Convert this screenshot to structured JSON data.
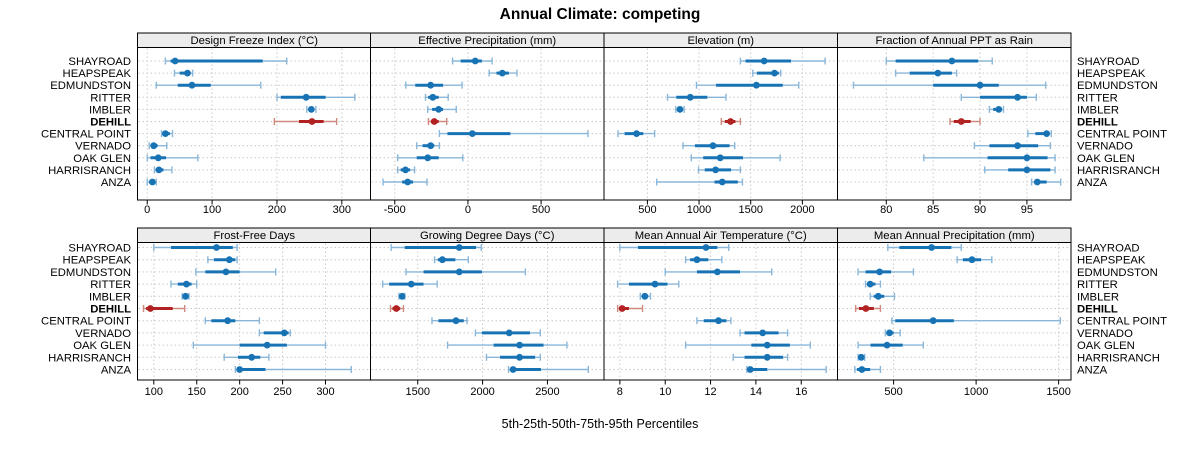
{
  "title": "Annual Climate: competing",
  "xlabel": "5th-25th-50th-75th-95th Percentiles",
  "highlight_location": "DEHILL",
  "locations": [
    "SHAYROAD",
    "HEAPSPEAK",
    "EDMUNDSTON",
    "RITTER",
    "IMBLER",
    "DEHILL",
    "CENTRAL POINT",
    "VERNADO",
    "OAK GLEN",
    "HARRISRANCH",
    "ANZA"
  ],
  "colors": {
    "blue": "#1873b5",
    "blue_light": "#8ab7d9",
    "red": "#b22222",
    "red_light": "#d0897f",
    "strip_bg": "#ececec",
    "grid": "#c9c9c9",
    "border": "#000000",
    "text": "#000000"
  },
  "chart_data": {
    "type": "segplot-trellis",
    "note": "Each row shows 5th-25th-50th-75th-95th percentiles; thin line 5th-95th with end caps, thick line 25th-75th, dot at median",
    "percentile_labels": [
      "5th",
      "25th",
      "50th",
      "75th",
      "95th"
    ],
    "panels": [
      {
        "title": "Design Freeze Index (°C)",
        "grid_row": 0,
        "grid_col": 0,
        "xlim": [
          -15,
          345
        ],
        "ticks": [
          0,
          100,
          200,
          300
        ],
        "values": {
          "SHAYROAD": [
            28,
            36,
            43,
            178,
            215
          ],
          "HEAPSPEAK": [
            42,
            50,
            62,
            67,
            70
          ],
          "EDMUNDSTON": [
            14,
            47,
            69,
            98,
            175
          ],
          "RITTER": [
            200,
            206,
            245,
            275,
            320
          ],
          "IMBLER": [
            246,
            249,
            253,
            257,
            260
          ],
          "DEHILL": [
            196,
            234,
            254,
            272,
            292
          ],
          "CENTRAL POINT": [
            22,
            24,
            28,
            35,
            39
          ],
          "VERNADO": [
            3,
            6,
            10,
            16,
            30
          ],
          "OAK GLEN": [
            0,
            5,
            17,
            29,
            78
          ],
          "HARRISRANCH": [
            11,
            13,
            18,
            25,
            38
          ],
          "ANZA": [
            0,
            3,
            8,
            12,
            14
          ]
        }
      },
      {
        "title": "Effective Precipitation (mm)",
        "grid_row": 0,
        "grid_col": 1,
        "xlim": [
          -666,
          930
        ],
        "ticks": [
          -500,
          0,
          500
        ],
        "values": {
          "SHAYROAD": [
            -105,
            -50,
            50,
            95,
            165
          ],
          "HEAPSPEAK": [
            145,
            195,
            235,
            280,
            335
          ],
          "EDMUNDSTON": [
            -425,
            -360,
            -255,
            -170,
            -40
          ],
          "RITTER": [
            -290,
            -272,
            -240,
            -200,
            -135
          ],
          "IMBLER": [
            -275,
            -245,
            -200,
            -170,
            -80
          ],
          "DEHILL": [
            -270,
            -253,
            -230,
            -200,
            -145
          ],
          "CENTRAL POINT": [
            -195,
            -140,
            30,
            290,
            820
          ],
          "VERNADO": [
            -350,
            -310,
            -255,
            -230,
            -195
          ],
          "OAK GLEN": [
            -480,
            -350,
            -275,
            -200,
            -35
          ],
          "HARRISRANCH": [
            -480,
            -460,
            -427,
            -395,
            -365
          ],
          "ANZA": [
            -580,
            -450,
            -412,
            -375,
            -280
          ]
        }
      },
      {
        "title": "Elevation (m)",
        "grid_row": 0,
        "grid_col": 2,
        "xlim": [
          80,
          2340
        ],
        "ticks": [
          500,
          1000,
          1500,
          2000
        ],
        "values": {
          "SHAYROAD": [
            1400,
            1450,
            1630,
            1890,
            2220
          ],
          "HEAPSPEAK": [
            1520,
            1560,
            1730,
            1772,
            1790
          ],
          "EDMUNDSTON": [
            975,
            1165,
            1555,
            1810,
            1965
          ],
          "RITTER": [
            695,
            780,
            915,
            1080,
            1260
          ],
          "IMBLER": [
            775,
            790,
            815,
            840,
            855
          ],
          "DEHILL": [
            1215,
            1250,
            1305,
            1352,
            1400
          ],
          "CENTRAL POINT": [
            215,
            280,
            395,
            460,
            570
          ],
          "VERNADO": [
            845,
            960,
            1135,
            1295,
            1345
          ],
          "OAK GLEN": [
            925,
            1040,
            1205,
            1425,
            1785
          ],
          "HARRISRANCH": [
            995,
            1055,
            1160,
            1310,
            1400
          ],
          "ANZA": [
            590,
            1150,
            1225,
            1375,
            1420
          ]
        }
      },
      {
        "title": "Fraction of Annual PPT as Rain",
        "grid_row": 0,
        "grid_col": 3,
        "xlim": [
          74.8,
          99.7
        ],
        "ticks": [
          80,
          85,
          90,
          95
        ],
        "values": {
          "SHAYROAD": [
            80.0,
            81.0,
            87.0,
            89.8,
            91.3
          ],
          "HEAPSPEAK": [
            81.0,
            82.5,
            85.5,
            87.0,
            87.5
          ],
          "EDMUNDSTON": [
            76.5,
            85.0,
            90.0,
            92.0,
            97.0
          ],
          "RITTER": [
            88.0,
            90.0,
            94.0,
            95.0,
            96.0
          ],
          "IMBLER": [
            91.0,
            91.4,
            92.0,
            92.3,
            92.5
          ],
          "DEHILL": [
            86.8,
            87.2,
            88.0,
            89.0,
            90.0
          ],
          "CENTRAL POINT": [
            95.1,
            95.9,
            97.1,
            97.4,
            97.6
          ],
          "VERNADO": [
            89.4,
            91.0,
            94.0,
            96.2,
            97.5
          ],
          "OAK GLEN": [
            84.0,
            90.8,
            95.0,
            97.2,
            98.0
          ],
          "HARRISRANCH": [
            90.5,
            93.0,
            95.0,
            97.5,
            98.0
          ],
          "ANZA": [
            95.5,
            95.8,
            96.1,
            97.1,
            98.6
          ]
        }
      },
      {
        "title": "Frost-Free Days",
        "grid_row": 1,
        "grid_col": 0,
        "xlim": [
          81,
          353
        ],
        "ticks": [
          100,
          150,
          200,
          250,
          300
        ],
        "values": {
          "SHAYROAD": [
            100,
            120,
            173,
            192,
            197
          ],
          "HEAPSPEAK": [
            163,
            170,
            188,
            195,
            197
          ],
          "EDMUNDSTON": [
            149,
            160,
            184,
            200,
            242
          ],
          "RITTER": [
            120,
            128,
            138,
            144,
            150
          ],
          "IMBLER": [
            133,
            135,
            137,
            139,
            141
          ],
          "DEHILL": [
            88,
            91,
            96,
            122,
            136
          ],
          "CENTRAL POINT": [
            160,
            167,
            186,
            195,
            223
          ],
          "VERNADO": [
            223,
            228,
            252,
            257,
            259
          ],
          "OAK GLEN": [
            146,
            200,
            232,
            255,
            300
          ],
          "HARRISRANCH": [
            182,
            198,
            214,
            224,
            234
          ],
          "ANZA": [
            195,
            197,
            200,
            230,
            330
          ]
        }
      },
      {
        "title": "Growing Degree Days (°C)",
        "grid_row": 1,
        "grid_col": 1,
        "xlim": [
          1136,
          2936
        ],
        "ticks": [
          1500,
          2000,
          2500
        ],
        "values": {
          "SHAYROAD": [
            1295,
            1400,
            1820,
            1950,
            1990
          ],
          "HEAPSPEAK": [
            1630,
            1655,
            1690,
            1790,
            1890
          ],
          "EDMUNDSTON": [
            1410,
            1545,
            1820,
            1995,
            2330
          ],
          "RITTER": [
            1230,
            1280,
            1450,
            1545,
            1650
          ],
          "IMBLER": [
            1355,
            1365,
            1380,
            1392,
            1400
          ],
          "DEHILL": [
            1290,
            1305,
            1335,
            1365,
            1390
          ],
          "CENTRAL POINT": [
            1610,
            1660,
            1795,
            1855,
            1880
          ],
          "VERNADO": [
            1945,
            1995,
            2205,
            2365,
            2445
          ],
          "OAK GLEN": [
            1730,
            2085,
            2285,
            2470,
            2650
          ],
          "HARRISRANCH": [
            2030,
            2135,
            2285,
            2405,
            2445
          ],
          "ANZA": [
            2200,
            2215,
            2235,
            2450,
            2815
          ]
        }
      },
      {
        "title": "Mean Annual Air Temperature (°C)",
        "grid_row": 1,
        "grid_col": 2,
        "xlim": [
          7.3,
          17.6
        ],
        "ticks": [
          8,
          10,
          12,
          14,
          16
        ],
        "values": {
          "SHAYROAD": [
            8.0,
            8.8,
            11.8,
            12.3,
            12.8
          ],
          "HEAPSPEAK": [
            10.9,
            11.1,
            11.4,
            11.9,
            12.5
          ],
          "EDMUNDSTON": [
            10.0,
            11.4,
            12.3,
            13.3,
            14.7
          ],
          "RITTER": [
            7.9,
            8.4,
            9.55,
            10.1,
            10.6
          ],
          "IMBLER": [
            8.9,
            9.0,
            9.1,
            9.25,
            9.35
          ],
          "DEHILL": [
            7.9,
            8.0,
            8.1,
            8.4,
            9.0
          ],
          "CENTRAL POINT": [
            11.4,
            11.7,
            12.35,
            12.7,
            12.9
          ],
          "VERNADO": [
            13.3,
            13.5,
            14.3,
            15.0,
            15.4
          ],
          "OAK GLEN": [
            10.9,
            13.8,
            14.5,
            15.5,
            16.4
          ],
          "HARRISRANCH": [
            13.0,
            13.5,
            14.5,
            15.2,
            15.4
          ],
          "ANZA": [
            13.6,
            13.65,
            13.75,
            14.5,
            17.1
          ]
        }
      },
      {
        "title": "Mean Annual Precipitation (mm)",
        "grid_row": 1,
        "grid_col": 3,
        "xlim": [
          160,
          1575
        ],
        "ticks": [
          500,
          1000,
          1500
        ],
        "values": {
          "SHAYROAD": [
            465,
            535,
            730,
            850,
            910
          ],
          "HEAPSPEAK": [
            885,
            920,
            975,
            1030,
            1095
          ],
          "EDMUNDSTON": [
            285,
            330,
            415,
            485,
            620
          ],
          "RITTER": [
            330,
            340,
            358,
            390,
            420
          ],
          "IMBLER": [
            358,
            380,
            407,
            443,
            505
          ],
          "DEHILL": [
            270,
            290,
            332,
            380,
            420
          ],
          "CENTRAL POINT": [
            490,
            510,
            740,
            865,
            1510
          ],
          "VERNADO": [
            450,
            460,
            475,
            500,
            540
          ],
          "OAK GLEN": [
            285,
            360,
            460,
            555,
            680
          ],
          "HARRISRANCH": [
            285,
            293,
            304,
            315,
            325
          ],
          "ANZA": [
            265,
            278,
            308,
            358,
            420
          ]
        }
      }
    ]
  }
}
